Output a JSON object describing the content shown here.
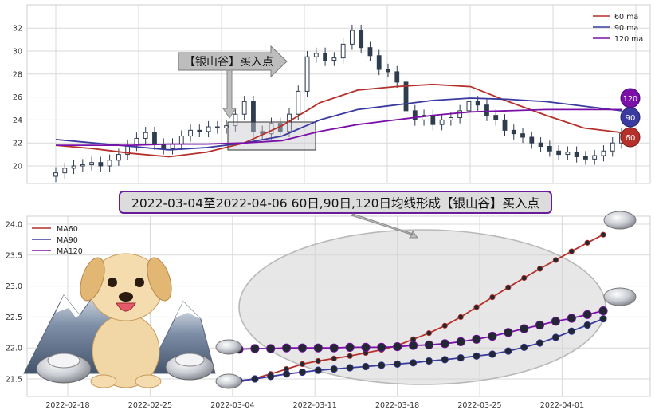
{
  "banner": "2022-03-04至2022-04-06 60日,90日,120日均线形成【银山谷】买入点",
  "callout": "【银山谷】买入点",
  "badges": [
    "120",
    "90",
    "60"
  ],
  "colors": {
    "ma60": "#b5302a",
    "ma90": "#3a3aa0",
    "ma120": "#7a10a8",
    "candle": "#2f3c50",
    "grid": "#d9d9d9",
    "panel": "#ffffff",
    "banner_bg": "#dcdcdc",
    "banner_border": "#6a1b9a"
  },
  "chart_data": [
    {
      "type": "line",
      "panel": "top",
      "title": "",
      "ylim": [
        19,
        33.5
      ],
      "yticks": [
        20,
        22,
        24,
        26,
        28,
        30,
        32
      ],
      "legend": {
        "placement": "top-right",
        "entries": [
          "60 ma",
          "90 ma",
          "120 ma"
        ]
      },
      "series": [
        {
          "name": "60 ma",
          "values": [
            21.8,
            21.5,
            21.1,
            20.8,
            21.2,
            22.0,
            23.5,
            25.5,
            26.6,
            26.9,
            27.1,
            26.9,
            25.6,
            24.4,
            23.3,
            22.9
          ]
        },
        {
          "name": "90 ma",
          "values": [
            22.3,
            22.0,
            21.7,
            21.4,
            21.6,
            22.0,
            22.6,
            24.0,
            24.9,
            25.3,
            25.7,
            25.9,
            25.8,
            25.6,
            25.2,
            24.8
          ]
        },
        {
          "name": "120 ma",
          "values": [
            21.8,
            21.8,
            21.8,
            21.9,
            21.9,
            22.0,
            22.2,
            23.0,
            23.6,
            24.0,
            24.4,
            24.7,
            24.8,
            24.9,
            24.9,
            24.9
          ]
        }
      ],
      "candles_close": [
        19.4,
        19.8,
        20.0,
        20.1,
        20.3,
        20.0,
        20.5,
        21.0,
        21.8,
        22.4,
        22.9,
        21.9,
        21.5,
        21.9,
        22.6,
        23.1,
        23.0,
        23.4,
        23.3,
        23.5,
        24.5,
        25.6,
        23.0,
        22.8,
        23.7,
        23.0,
        24.5,
        26.5,
        29.5,
        29.8,
        29.2,
        29.4,
        30.6,
        31.8,
        30.3,
        29.6,
        28.4,
        28.2,
        27.3,
        24.8,
        24.0,
        24.4,
        23.6,
        24.0,
        24.2,
        24.8,
        25.6,
        25.3,
        24.4,
        24.0,
        23.1,
        22.8,
        22.5,
        22.0,
        21.7,
        21.3,
        21.0,
        21.2,
        20.8,
        20.6,
        20.9,
        21.3,
        22.0,
        22.8
      ]
    },
    {
      "type": "line",
      "panel": "bottom",
      "title": "",
      "ylim": [
        21.3,
        24.1
      ],
      "yticks": [
        21.5,
        22.0,
        22.5,
        23.0,
        23.5,
        24.0
      ],
      "xticks": [
        "2022-02-18",
        "2022-02-25",
        "2022-03-04",
        "2022-03-11",
        "2022-03-18",
        "2022-03-25",
        "2022-04-01"
      ],
      "legend": {
        "placement": "top-left",
        "entries": [
          "MA60",
          "MA90",
          "MA120"
        ]
      },
      "series": [
        {
          "name": "MA60",
          "values": [
            21.45,
            21.51,
            21.58,
            21.66,
            21.74,
            21.79,
            21.83,
            21.87,
            21.92,
            21.97,
            22.04,
            22.14,
            22.24,
            22.36,
            22.5,
            22.66,
            22.82,
            22.98,
            23.13,
            23.28,
            23.42,
            23.56,
            23.7,
            23.83
          ]
        },
        {
          "name": "MA90",
          "values": [
            21.47,
            21.5,
            21.54,
            21.58,
            21.61,
            21.64,
            21.66,
            21.68,
            21.7,
            21.72,
            21.74,
            21.76,
            21.79,
            21.81,
            21.84,
            21.87,
            21.9,
            21.95,
            22.01,
            22.08,
            22.17,
            22.27,
            22.37,
            22.47
          ]
        },
        {
          "name": "MA120",
          "values": [
            21.98,
            21.99,
            21.99,
            22.0,
            22.0,
            22.0,
            22.0,
            22.01,
            22.01,
            22.01,
            22.02,
            22.04,
            22.05,
            22.07,
            22.1,
            22.14,
            22.19,
            22.25,
            22.31,
            22.37,
            22.43,
            22.48,
            22.54,
            22.6
          ]
        }
      ]
    }
  ]
}
